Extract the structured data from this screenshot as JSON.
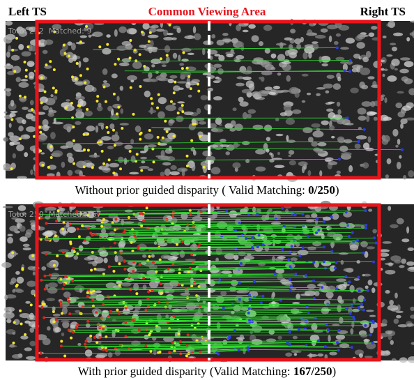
{
  "header": {
    "left": "Left TS",
    "center": "Common Viewing Area",
    "right": "Right TS"
  },
  "panels": [
    {
      "overlay": "Toto: 232  Matched: 9",
      "caption": {
        "text": "Without prior guided disparity ( Valid Matching: ",
        "value": "0/250",
        "close": ")"
      }
    },
    {
      "overlay": "Toto: 250  Matched: 167",
      "caption": {
        "text": "With prior guided disparity (Valid Matching: ",
        "value": "167/250",
        "close": ")"
      }
    }
  ]
}
